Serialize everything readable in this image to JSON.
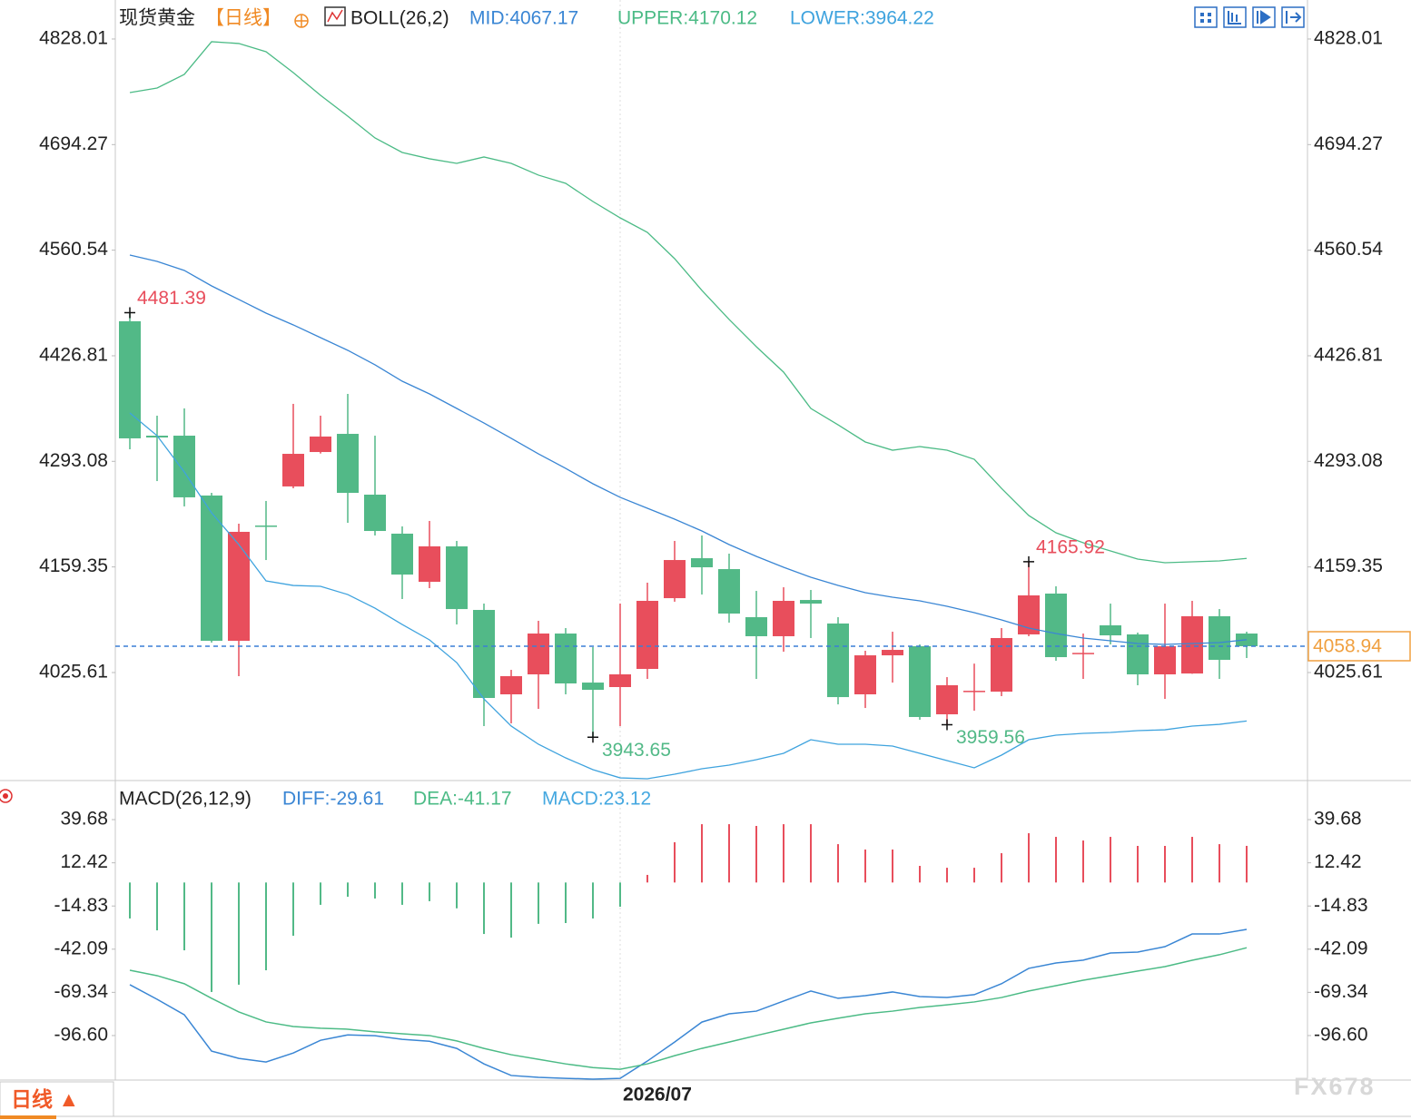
{
  "chart_data": [
    {
      "type": "candlestick",
      "title": "现货黄金",
      "period": "【日线】",
      "indicator": "BOLL(26,2)",
      "categories": [
        null,
        null,
        null,
        null,
        null,
        null,
        null,
        null,
        null,
        null,
        null,
        null,
        null,
        null,
        null,
        null,
        null,
        null,
        "2026/07",
        null,
        null,
        null,
        null,
        null,
        null,
        null,
        null,
        null,
        null,
        null,
        null,
        null,
        null,
        null,
        null,
        null,
        null,
        null,
        null,
        null,
        null,
        null
      ],
      "open": [
        4470.5,
        4325.6,
        4325.6,
        4249.8,
        4065.8,
        4211.8,
        4261.3,
        4304.9,
        4327.9,
        4250.9,
        4201.5,
        4140.5,
        4185.4,
        4104.9,
        3998.0,
        4023.3,
        4075.0,
        4012.9,
        4007.2,
        4030.2,
        4119.8,
        4170.4,
        4156.6,
        4095.7,
        4071.6,
        4117.5,
        4087.7,
        3998.0,
        4047.4,
        4058.9,
        3972.7,
        4001.4,
        4001.4,
        4073.9,
        4125.6,
        4049.7,
        4085.4,
        4073.9,
        4023.3,
        4024.4,
        4096.9,
        4075.0
      ],
      "high": [
        4481.39,
        4350.9,
        4360.1,
        4253.2,
        4214.1,
        4242.9,
        4365.9,
        4350.9,
        4378.5,
        4325.6,
        4210.7,
        4217.6,
        4192.3,
        4112.9,
        4029.0,
        4091.1,
        4081.9,
        4057.8,
        4112.9,
        4139.4,
        4192.3,
        4199.2,
        4176.2,
        4129.0,
        4133.6,
        4130.2,
        4095.7,
        4053.2,
        4077.3,
        4061.2,
        4019.8,
        4036.9,
        4081.9,
        4165.92,
        4134.8,
        4075.0,
        4112.9,
        4076.2,
        4112.9,
        4116.4,
        4106.0,
        4077.3
      ],
      "low": [
        4308.4,
        4268.1,
        4236.0,
        4063.5,
        4021.0,
        4168.1,
        4259.0,
        4303.0,
        4215.3,
        4199.2,
        4118.7,
        4132.5,
        4086.5,
        3957.8,
        3961.2,
        3979.6,
        3998.0,
        3943.65,
        3957.8,
        4017.5,
        4115.3,
        4124.4,
        4088.8,
        4017.5,
        4052.0,
        4069.3,
        3985.3,
        3980.7,
        4012.9,
        3965.8,
        3959.56,
        3977.3,
        3995.7,
        4071.6,
        4040.5,
        4017.5,
        4061.2,
        4009.5,
        3992.2,
        4024.0,
        4017.5,
        4044.0
      ],
      "close": [
        4322.2,
        4323.3,
        4247.5,
        4065.8,
        4203.8,
        4211.0,
        4302.6,
        4324.5,
        4253.2,
        4204.9,
        4149.7,
        4185.4,
        4106.0,
        3993.4,
        4021.0,
        4075.0,
        4011.8,
        4003.7,
        4023.3,
        4116.4,
        4168.1,
        4158.9,
        4100.3,
        4071.6,
        4116.4,
        4112.9,
        3994.5,
        4047.4,
        4054.3,
        3969.3,
        4009.5,
        4002.5,
        4069.3,
        4123.3,
        4045.1,
        4050.5,
        4072.7,
        4023.3,
        4058.9,
        4096.9,
        4041.7,
        4058.94
      ],
      "up_color": "#e84e5c",
      "down_color": "#52b987",
      "series": [
        {
          "name": "MID:4067.17",
          "color": "#3a86d4",
          "values": [
            4554.4,
            4546.3,
            4534.9,
            4515.3,
            4498.1,
            4480.8,
            4465.9,
            4449.8,
            4433.7,
            4415.3,
            4394.6,
            4378.5,
            4360.1,
            4341.7,
            4322.2,
            4302.6,
            4284.2,
            4264.7,
            4247.5,
            4233.7,
            4219.9,
            4204.9,
            4187.7,
            4172.7,
            4158.9,
            4146.3,
            4135.9,
            4126.7,
            4121.0,
            4116.4,
            4109.5,
            4101.5,
            4092.3,
            4081.9,
            4075.0,
            4069.3,
            4065.8,
            4062.4,
            4061.2,
            4062.4,
            4063.5,
            4067.17
          ]
        },
        {
          "name": "UPPER:4170.12",
          "color": "#4cbb86",
          "values": [
            4760.2,
            4765.9,
            4783.2,
            4824.6,
            4822.3,
            4811.9,
            4785.5,
            4756.7,
            4730.3,
            4702.7,
            4684.3,
            4676.3,
            4670.5,
            4678.6,
            4670.5,
            4655.6,
            4645.2,
            4622.2,
            4601.5,
            4583.1,
            4549.8,
            4509.6,
            4472.8,
            4438.3,
            4406.1,
            4360.1,
            4339.4,
            4317.6,
            4307.2,
            4311.8,
            4307.2,
            4295.7,
            4258.9,
            4224.5,
            4202.6,
            4190.0,
            4179.6,
            4169.3,
            4164.7,
            4165.8,
            4167.0,
            4170.12
          ]
        },
        {
          "name": "LOWER:3964.22",
          "color": "#3fa3de",
          "values": [
            4354.4,
            4325.6,
            4279.6,
            4227.9,
            4187.7,
            4141.7,
            4135.9,
            4134.8,
            4124.4,
            4107.2,
            4086.5,
            4067.0,
            4038.2,
            3992.2,
            3957.8,
            3934.8,
            3917.5,
            3902.6,
            3892.2,
            3891.1,
            3896.8,
            3903.7,
            3908.3,
            3915.2,
            3923.3,
            3940.5,
            3934.8,
            3934.8,
            3932.5,
            3923.3,
            3914.1,
            3904.9,
            3921.0,
            3940.5,
            3946.3,
            3948.6,
            3949.7,
            3952.0,
            3953.1,
            3957.8,
            3960.0,
            3964.22
          ]
        }
      ],
      "high_marks": [
        4481.39,
        4165.92
      ],
      "low_marks": [
        3943.65,
        3959.56
      ],
      "last_price": 4058.94,
      "last_price_color": "#f0a040",
      "last_line_color": "#3a7fd5",
      "ylim": [
        3888.8,
        4877.4
      ],
      "yticks": [
        4025.61,
        4159.35,
        4293.08,
        4426.81,
        4560.54,
        4694.27,
        4828.01
      ]
    },
    {
      "type": "macd",
      "title": "MACD(26,12,9)",
      "up_color": "#e84e5c",
      "down_color": "#52b987",
      "series": [
        {
          "name": "DIFF:-29.61",
          "color": "#3a86d4",
          "values": [
            -64.5,
            -73.7,
            -83.5,
            -106.4,
            -111.0,
            -113.3,
            -107.6,
            -99.6,
            -96.2,
            -96.7,
            -99.0,
            -100.2,
            -104.7,
            -114.5,
            -121.8,
            -123.0,
            -123.6,
            -124.1,
            -123.6,
            -112.7,
            -100.7,
            -88.1,
            -82.9,
            -81.2,
            -74.8,
            -68.5,
            -73.1,
            -71.4,
            -69.1,
            -72.0,
            -72.6,
            -70.8,
            -63.9,
            -54.2,
            -50.8,
            -49.0,
            -44.5,
            -43.9,
            -40.5,
            -32.5,
            -32.5,
            -29.61
          ]
        },
        {
          "name": "DEA:-41.17",
          "color": "#4cbb86",
          "values": [
            -55.4,
            -58.8,
            -63.9,
            -73.1,
            -81.7,
            -88.0,
            -90.9,
            -92.0,
            -92.6,
            -94.3,
            -95.5,
            -96.6,
            -100.0,
            -104.7,
            -108.7,
            -111.6,
            -114.5,
            -116.8,
            -117.9,
            -114.5,
            -109.3,
            -104.7,
            -100.7,
            -96.6,
            -92.6,
            -88.6,
            -85.7,
            -82.9,
            -81.2,
            -78.9,
            -77.2,
            -75.4,
            -72.6,
            -68.5,
            -65.1,
            -61.7,
            -58.8,
            -55.9,
            -53.1,
            -49.1,
            -45.6,
            -41.17
          ]
        },
        {
          "name": "MACD:23.12",
          "color": "#45a8e0",
          "type": "bar",
          "values": [
            -22.7,
            -30.2,
            -42.8,
            -69.1,
            -64.5,
            -55.4,
            -33.6,
            -14.1,
            -9.0,
            -10.1,
            -14.1,
            -11.8,
            -16.3,
            -32.5,
            -34.8,
            -26.1,
            -25.6,
            -22.7,
            -15.3,
            4.8,
            25.4,
            36.8,
            36.8,
            35.7,
            36.8,
            36.8,
            24.2,
            20.8,
            20.8,
            10.5,
            9.3,
            9.3,
            18.5,
            31.1,
            28.8,
            26.5,
            28.8,
            23.1,
            23.1,
            28.8,
            24.2,
            23.12
          ]
        }
      ],
      "ylim": [
        -124.7,
        63.2
      ],
      "yticks": [
        {
          "value": -96.6,
          "label": "-96.60"
        },
        -69.34,
        -42.09,
        -14.83,
        12.42,
        39.68
      ]
    }
  ],
  "tab": "日线 ▲",
  "watermark": "FX678"
}
